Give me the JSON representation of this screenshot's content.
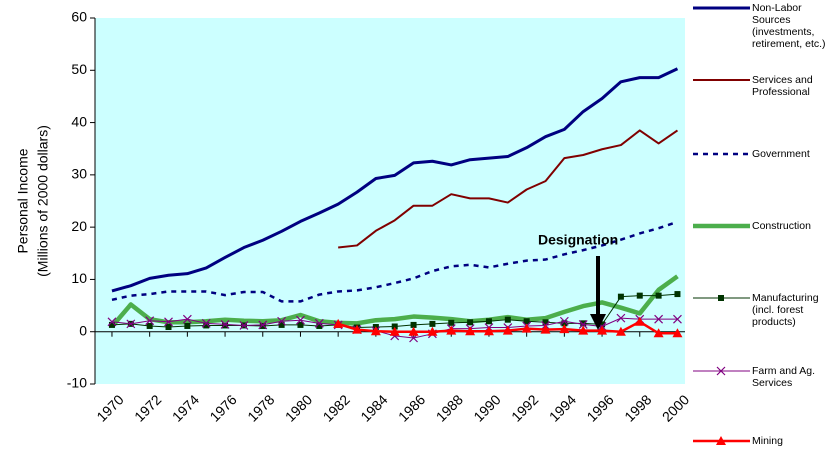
{
  "chart_data": {
    "type": "line",
    "y_label": [
      "Personal Income",
      "(Millions of 2000 dollars)"
    ],
    "annotation": "Designation",
    "x": [
      1970,
      1971,
      1972,
      1973,
      1974,
      1975,
      1976,
      1977,
      1978,
      1979,
      1980,
      1981,
      1982,
      1983,
      1984,
      1985,
      1986,
      1987,
      1988,
      1989,
      1990,
      1991,
      1992,
      1993,
      1994,
      1995,
      1996,
      1997,
      1998,
      1999,
      2000
    ],
    "xlim": [
      1969.1,
      2000.4
    ],
    "xticks": [
      1970,
      1972,
      1974,
      1976,
      1978,
      1980,
      1982,
      1984,
      1986,
      1988,
      1990,
      1992,
      1994,
      1996,
      1998,
      2000
    ],
    "ylim": [
      -10,
      60
    ],
    "yticks": [
      -10,
      0,
      10,
      20,
      30,
      40,
      50,
      60
    ],
    "background": "#ccffff",
    "series": [
      {
        "name": "Non-Labor Sources (investments, retirement, etc.)",
        "color": "#000080",
        "style": "solid",
        "width": 3,
        "marker": "none",
        "values": [
          7.8,
          8.8,
          10.2,
          10.8,
          11.1,
          12.2,
          14.2,
          16.1,
          17.5,
          19.2,
          21.1,
          22.7,
          24.4,
          26.7,
          29.3,
          29.9,
          32.3,
          32.6,
          31.9,
          32.9,
          33.2,
          33.5,
          35.2,
          37.3,
          38.7,
          42.1,
          44.6,
          47.8,
          48.6,
          48.6,
          50.3
        ]
      },
      {
        "name": "Services and Professional",
        "color": "#800000",
        "style": "solid",
        "width": 2,
        "marker": "none",
        "values": [
          null,
          null,
          null,
          null,
          null,
          null,
          null,
          null,
          null,
          null,
          null,
          null,
          16.1,
          16.5,
          19.3,
          21.3,
          24.1,
          24.1,
          26.3,
          25.5,
          25.5,
          24.7,
          27.2,
          28.8,
          33.2,
          33.8,
          34.9,
          35.7,
          38.5,
          36.0,
          38.5
        ]
      },
      {
        "name": "Government",
        "color": "#000080",
        "style": "dashed",
        "width": 2.5,
        "marker": "none",
        "values": [
          6.1,
          6.9,
          7.2,
          7.7,
          7.7,
          7.7,
          7.0,
          7.6,
          7.6,
          5.8,
          5.8,
          7.1,
          7.7,
          7.9,
          8.5,
          9.3,
          10.2,
          11.6,
          12.5,
          12.8,
          12.3,
          13.0,
          13.6,
          13.8,
          14.8,
          15.6,
          16.5,
          17.6,
          18.8,
          19.8,
          21.0
        ]
      },
      {
        "name": "Construction",
        "color": "#4cae4c",
        "style": "solid",
        "width": 4.5,
        "marker": "none",
        "values": [
          1.0,
          5.2,
          2.4,
          1.8,
          1.8,
          2.0,
          2.3,
          2.1,
          2.0,
          2.2,
          3.2,
          2.0,
          1.7,
          1.6,
          2.2,
          2.4,
          2.9,
          2.7,
          2.4,
          2.0,
          2.3,
          2.8,
          2.3,
          2.6,
          3.8,
          4.9,
          5.6,
          4.6,
          3.5,
          8.0,
          10.6
        ]
      },
      {
        "name": "Manufacturing (incl. forest products)",
        "color": "#003300",
        "style": "solid",
        "width": 1,
        "marker": "square",
        "values": [
          1.3,
          1.5,
          1.1,
          0.9,
          1.1,
          1.2,
          1.2,
          1.2,
          1.1,
          1.3,
          1.3,
          1.1,
          1.3,
          0.8,
          0.9,
          1.0,
          1.3,
          1.5,
          1.7,
          1.8,
          2.0,
          2.3,
          2.0,
          1.8,
          1.6,
          1.6,
          1.4,
          6.7,
          6.9,
          6.9,
          7.2
        ]
      },
      {
        "name": "Farm and Ag. Services",
        "color": "#800080",
        "style": "solid",
        "width": 1,
        "marker": "x",
        "values": [
          1.9,
          1.5,
          2.1,
          1.9,
          2.4,
          1.6,
          1.4,
          1.2,
          1.3,
          2.0,
          2.2,
          1.6,
          1.3,
          0.4,
          0.2,
          -0.8,
          -1.2,
          -0.4,
          0.6,
          0.6,
          0.8,
          0.8,
          1.1,
          1.2,
          2.0,
          1.4,
          1.0,
          2.6,
          2.4,
          2.4,
          2.4
        ]
      },
      {
        "name": "Mining",
        "color": "#ff0000",
        "style": "solid",
        "width": 2.5,
        "marker": "triangle",
        "values": [
          null,
          null,
          null,
          null,
          null,
          null,
          null,
          null,
          null,
          null,
          null,
          null,
          1.5,
          0.4,
          0.1,
          0.0,
          0.0,
          0.0,
          0.2,
          0.1,
          0.1,
          0.2,
          0.6,
          0.4,
          0.5,
          0.2,
          0.2,
          0.0,
          1.9,
          -0.3,
          -0.3
        ]
      }
    ]
  }
}
